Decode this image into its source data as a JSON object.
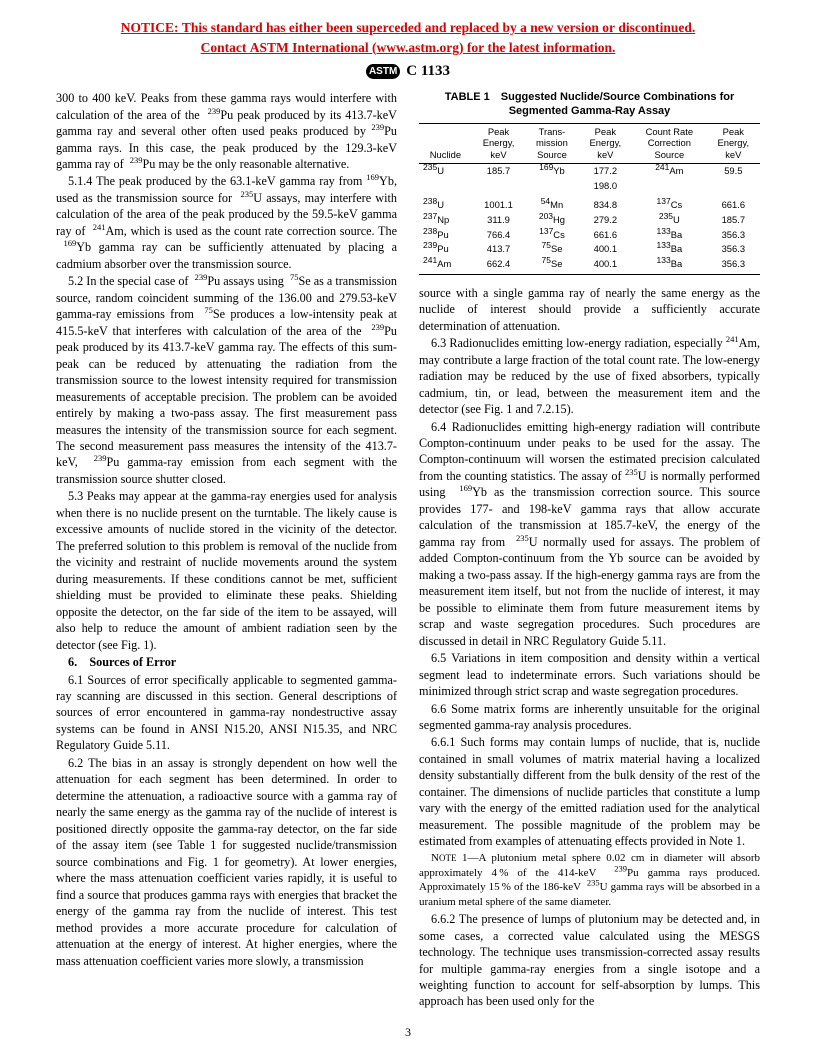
{
  "notice": {
    "l1": "NOTICE: This standard has either been superceded and replaced by a new version or discontinued.",
    "l2": "Contact ASTM International (www.astm.org) for the latest information."
  },
  "std": "C 1133",
  "pagenum": "3",
  "p_intro": "300 to 400 keV. Peaks from these gamma rays would interfere with calculation of the area of the  ",
  "p_intro2": "Pu peak produced by its 413.7-keV gamma ray and several other often used peaks produced by ",
  "p_intro3": "Pu gamma rays. In this case, the peak produced by the 129.3-keV gamma ray of  ",
  "p_intro4": "Pu may be the only reasonable alternative.",
  "p514a": "5.1.4 The peak produced by the 63.1-keV gamma ray from ",
  "p514b": "Yb, used as the transmission source for  ",
  "p514c": "U assays, may interfere with calculation of the area of the peak produced by the 59.5-keV gamma ray of  ",
  "p514d": "Am, which is used as the count rate correction source. The  ",
  "p514e": "Yb gamma ray can be sufficiently attenuated by placing a cadmium absorber over the transmission source.",
  "p52a": "5.2 In the special case of  ",
  "p52b": "Pu assays using  ",
  "p52c": "Se as a transmission source, random coincident summing of the 136.00 and 279.53-keV gamma-ray emissions from  ",
  "p52d": "Se produces a low-intensity peak at 415.5-keV that interferes with calculation of the area of the  ",
  "p52e": "Pu peak produced by its 413.7-keV gamma ray. The effects of this sum-peak can be reduced by attenuating the radiation from the transmission source to the lowest intensity required for transmission measurements of acceptable precision. The problem can be avoided entirely by making a two-pass assay. The first measurement pass measures the intensity of the transmission source for each segment. The second measurement pass measures the intensity of the 413.7-keV,  ",
  "p52f": "Pu gamma-ray emission from each segment with the transmission source shutter closed.",
  "p53": "5.3 Peaks may appear at the gamma-ray energies used for analysis when there is no nuclide present on the turntable. The likely cause is excessive amounts of nuclide stored in the vicinity of the detector. The preferred solution to this problem is removal of the nuclide from the vicinity and restraint of nuclide movements around the system during measurements. If these conditions cannot be met, sufficient shielding must be provided to eliminate these peaks. Shielding opposite the detector, on the far side of the item to be assayed, will also help to reduce the amount of ambient radiation seen by the detector (see Fig. 1).",
  "sec6": "6. Sources of Error",
  "p61": "6.1 Sources of error specifically applicable to segmented gamma-ray scanning are discussed in this section. General descriptions of sources of error encountered in gamma-ray nondestructive assay systems can be found in ANSI N15.20, ANSI N15.35, and NRC Regulatory Guide 5.11.",
  "p62": "6.2 The bias in an assay is strongly dependent on how well the attenuation for each segment has been determined. In order to determine the attenuation, a radioactive source with a gamma ray of nearly the same energy as the gamma ray of the nuclide of interest is positioned directly opposite the gamma-ray detector, on the far side of the assay item (see Table 1 for suggested nuclide/transmission source combinations and Fig. 1 for geometry). At lower energies, where the mass attenuation coefficient varies rapidly, it is useful to find a source that produces gamma rays with energies that bracket the energy of the gamma ray from the nuclide of interest. This test method provides a more accurate procedure for calculation of attenuation at the energy of interest. At higher energies, where the mass attenuation coefficient varies more slowly, a transmission",
  "tbl_title": "TABLE 1 Suggested Nuclide/Source Combinations for Segmented Gamma-Ray Assay",
  "th": {
    "c1": "Nuclide",
    "c2": "Peak Energy, keV",
    "c3": "Trans-mission Source",
    "c4": "Peak Energy, keV",
    "c5": "Count Rate Correction Source",
    "c6": "Peak Energy, keV"
  },
  "rows": [
    {
      "n": "235",
      "e": "U",
      "v1": "185.7",
      "ts": "169",
      "te": "Yb",
      "v2": "177.2",
      "cs": "241",
      "ce": "Am",
      "v3": "59.5"
    },
    {
      "n": "",
      "e": "",
      "v1": "",
      "ts": "",
      "te": "",
      "v2": "198.0",
      "cs": "",
      "ce": "",
      "v3": ""
    },
    {
      "n": "238",
      "e": "U",
      "v1": "1001.1",
      "ts": "54",
      "te": "Mn",
      "v2": "834.8",
      "cs": "137",
      "ce": "Cs",
      "v3": "661.6"
    },
    {
      "n": "237",
      "e": "Np",
      "v1": "311.9",
      "ts": "203",
      "te": "Hg",
      "v2": "279.2",
      "cs": "235",
      "ce": "U",
      "v3": "185.7"
    },
    {
      "n": "238",
      "e": "Pu",
      "v1": "766.4",
      "ts": "137",
      "te": "Cs",
      "v2": "661.6",
      "cs": "133",
      "ce": "Ba",
      "v3": "356.3"
    },
    {
      "n": "239",
      "e": "Pu",
      "v1": "413.7",
      "ts": "75",
      "te": "Se",
      "v2": "400.1",
      "cs": "133",
      "ce": "Ba",
      "v3": "356.3"
    },
    {
      "n": "241",
      "e": "Am",
      "v1": "662.4",
      "ts": "75",
      "te": "Se",
      "v2": "400.1",
      "cs": "133",
      "ce": "Ba",
      "v3": "356.3"
    }
  ],
  "p62cont": "source with a single gamma ray of nearly the same energy as the nuclide of interest should provide a sufficiently accurate determination of attenuation.",
  "p63a": "6.3 Radionuclides emitting low-energy radiation, especially ",
  "p63b": "Am, may contribute a large fraction of the total count rate. The low-energy radiation may be reduced by the use of fixed absorbers, typically cadmium, tin, or lead, between the measurement item and the detector (see Fig. 1 and 7.2.15).",
  "p64a": "6.4 Radionuclides emitting high-energy radiation will contribute Compton-continuum under peaks to be used for the assay. The Compton-continuum will worsen the estimated precision calculated from the counting statistics. The assay of ",
  "p64b": "U is normally performed using  ",
  "p64c": "Yb as the transmission correction source. This source provides 177- and 198-keV gamma rays that allow accurate calculation of the transmission at 185.7-keV, the energy of the gamma ray from  ",
  "p64d": "U normally used for assays. The problem of added Compton-continuum from the Yb source can be avoided by making a two-pass assay. If the high-energy gamma rays are from the measurement item itself, but not from the nuclide of interest, it may be possible to eliminate them from future measurement items by scrap and waste segregation procedures. Such procedures are discussed in detail in NRC Regulatory Guide 5.11.",
  "p65": "6.5 Variations in item composition and density within a vertical segment lead to indeterminate errors. Such variations should be minimized through strict scrap and waste segregation procedures.",
  "p66": "6.6 Some matrix forms are inherently unsuitable for the original segmented gamma-ray analysis procedures.",
  "p661": "6.6.1 Such forms may contain lumps of nuclide, that is, nuclide contained in small volumes of matrix material having a localized density substantially different from the bulk density of the rest of the container. The dimensions of nuclide particles that constitute a lump vary with the energy of the emitted radiation used for the analytical measurement. The possible magnitude of the problem may be estimated from examples of attenuating effects provided in Note 1.",
  "note1a": "N",
  "note1a2": "OTE",
  "note1b": " 1—A plutonium metal sphere 0.02 cm in diameter will absorb approximately 4 % of the 414-keV  ",
  "note1c": "Pu gamma rays produced. Approximately 15 % of the 186-keV  ",
  "note1d": "U gamma rays will be absorbed in a uranium metal sphere of the same diameter.",
  "p662": "6.6.2 The presence of lumps of plutonium may be detected and, in some cases, a corrected value calculated using the MESGS technology. The technique uses transmission-corrected assay results for multiple gamma-ray energies from a single isotope and a weighting function to account for self-absorption by lumps. This approach has been used only for the"
}
